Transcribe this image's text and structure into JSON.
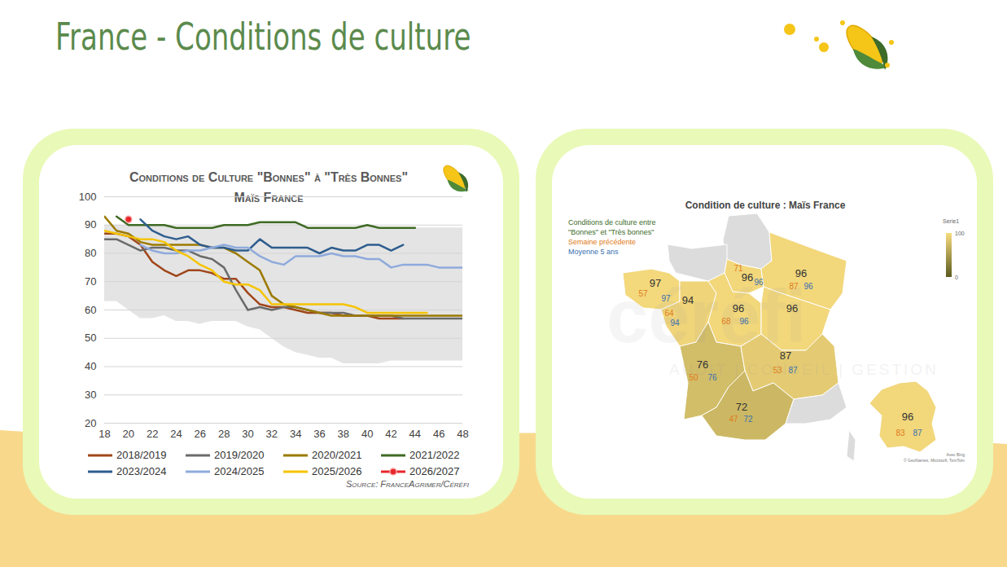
{
  "title": "France - Conditions de culture",
  "chart_data": {
    "type": "line",
    "title": "Conditions de Culture \"Bonnes\" à \"Très Bonnes\"",
    "subtitle": "Maïs France",
    "source": "Source: FranceAgrimer/Céréfi",
    "x": [
      18,
      19,
      20,
      21,
      22,
      23,
      24,
      25,
      26,
      27,
      28,
      29,
      30,
      31,
      32,
      33,
      34,
      35,
      36,
      37,
      38,
      39,
      40,
      41,
      42,
      43,
      44,
      45,
      46,
      47,
      48
    ],
    "xlim": [
      18,
      48
    ],
    "xticks": [
      18,
      20,
      22,
      24,
      26,
      28,
      30,
      32,
      34,
      36,
      38,
      40,
      42,
      44,
      46,
      48
    ],
    "ylim": [
      20,
      100
    ],
    "yticks": [
      20,
      30,
      40,
      50,
      60,
      70,
      80,
      90,
      100
    ],
    "grid": true,
    "band": {
      "color": "#e4e4e4",
      "low": [
        63,
        63,
        60,
        57,
        57,
        58,
        56,
        56,
        55,
        56,
        56,
        56,
        54,
        53,
        50,
        47,
        45,
        44,
        43,
        43,
        41,
        41,
        41,
        41,
        42,
        42,
        42,
        42,
        42,
        42,
        42
      ],
      "high": [
        90,
        90,
        90,
        90,
        90,
        90,
        89,
        89,
        89,
        89,
        90,
        90,
        90,
        91,
        91,
        91,
        91,
        89,
        89,
        89,
        89,
        89,
        90,
        89,
        89,
        89,
        89,
        89,
        89,
        89,
        89
      ]
    },
    "series": [
      {
        "name": "2018/2019",
        "color": "#a0461a",
        "values": [
          87,
          87,
          86,
          83,
          77,
          74,
          72,
          74,
          74,
          73,
          71,
          71,
          66,
          62,
          61,
          61,
          60,
          59,
          59,
          59,
          58,
          58,
          58,
          57,
          57,
          57,
          null,
          null,
          null,
          null,
          null
        ]
      },
      {
        "name": "2019/2020",
        "color": "#6b6b6b",
        "values": [
          85,
          85,
          83,
          81,
          82,
          82,
          81,
          81,
          79,
          78,
          75,
          67,
          60,
          61,
          60,
          61,
          61,
          60,
          59,
          59,
          59,
          58,
          58,
          58,
          58,
          57,
          57,
          57,
          57,
          57,
          57
        ]
      },
      {
        "name": "2020/2021",
        "color": "#9c7a00",
        "values": [
          93,
          88,
          87,
          84,
          83,
          83,
          83,
          83,
          83,
          82,
          82,
          80,
          77,
          74,
          65,
          62,
          61,
          60,
          59,
          58,
          58,
          58,
          58,
          58,
          58,
          58,
          58,
          58,
          58,
          58,
          58
        ]
      },
      {
        "name": "2021/2022",
        "color": "#3f6b24",
        "values": [
          null,
          93,
          90,
          90,
          90,
          90,
          89,
          89,
          89,
          89,
          90,
          90,
          90,
          91,
          91,
          91,
          91,
          89,
          89,
          89,
          89,
          89,
          90,
          89,
          89,
          89,
          89,
          null,
          null,
          null,
          null
        ]
      },
      {
        "name": "2023/2024",
        "color": "#2e5d8e",
        "values": [
          null,
          null,
          null,
          92,
          88,
          86,
          85,
          86,
          83,
          82,
          82,
          81,
          81,
          85,
          82,
          82,
          82,
          82,
          80,
          82,
          81,
          81,
          83,
          83,
          81,
          83,
          null,
          null,
          null,
          null,
          null
        ]
      },
      {
        "name": "2024/2025",
        "color": "#8faadc",
        "values": [
          null,
          null,
          null,
          83,
          81,
          80,
          80,
          81,
          81,
          82,
          83,
          82,
          82,
          79,
          77,
          76,
          79,
          79,
          79,
          80,
          79,
          79,
          78,
          78,
          75,
          76,
          76,
          76,
          75,
          75,
          75
        ]
      },
      {
        "name": "2025/2026",
        "color": "#f5c400",
        "values": [
          88,
          87,
          86,
          85,
          85,
          84,
          81,
          79,
          76,
          74,
          70,
          69,
          69,
          67,
          62,
          62,
          62,
          62,
          62,
          62,
          62,
          61,
          59,
          59,
          59,
          59,
          59,
          59,
          null,
          null,
          null
        ]
      },
      {
        "name": "2026/2027",
        "color": "#e8262a",
        "marker": "circle",
        "values": [
          null,
          null,
          92,
          null,
          null,
          null,
          null,
          null,
          null,
          null,
          null,
          null,
          null,
          null,
          null,
          null,
          null,
          null,
          null,
          null,
          null,
          null,
          null,
          null,
          null,
          null,
          null,
          null,
          null,
          null,
          null
        ]
      }
    ]
  },
  "map": {
    "title": "Condition de culture : Maïs France",
    "legend": [
      {
        "lines": [
          "Conditions de culture entre",
          "\"Bonnes\" et \"Très bonnes\""
        ],
        "color": "#3d6b2a"
      },
      {
        "lines": [
          "Semaine précédente"
        ],
        "color": "#e07b20"
      },
      {
        "lines": [
          "Moyenne 5 ans"
        ],
        "color": "#3a6fb0"
      }
    ],
    "colorbar": {
      "title": "Serie1",
      "range": [
        0,
        100
      ],
      "ticks": [
        0,
        100
      ],
      "colors": [
        "#5b5a1f",
        "#f8dc7f"
      ]
    },
    "no_data_color": "#dcdcdc",
    "regions": [
      {
        "value": null,
        "previous": null,
        "average": null
      },
      {
        "value": null,
        "previous": null,
        "average": null
      },
      {
        "value": 97,
        "previous": 57,
        "average": 97
      },
      {
        "value": 94,
        "previous": 64,
        "average": 94
      },
      {
        "value": 96,
        "previous": 71,
        "average": 96
      },
      {
        "value": 96,
        "previous": 68,
        "average": 96
      },
      {
        "value": 96,
        "previous": 87,
        "average": 96
      },
      {
        "value": 96,
        "previous": null,
        "average": null
      },
      {
        "value": 76,
        "previous": 50,
        "average": 76
      },
      {
        "value": 87,
        "previous": 53,
        "average": 87
      },
      {
        "value": 72,
        "previous": 47,
        "average": 72
      },
      {
        "value": null,
        "previous": null,
        "average": null
      },
      {
        "value": null,
        "previous": null,
        "average": null
      }
    ],
    "national": {
      "value": 96,
      "previous": 83,
      "average": 87
    },
    "credits": [
      "Avec Bing",
      "© GeoNames, Microsoft, TomTom"
    ],
    "watermark": [
      "céréfi",
      "AUDIT | CONSEIL | GESTION"
    ]
  }
}
